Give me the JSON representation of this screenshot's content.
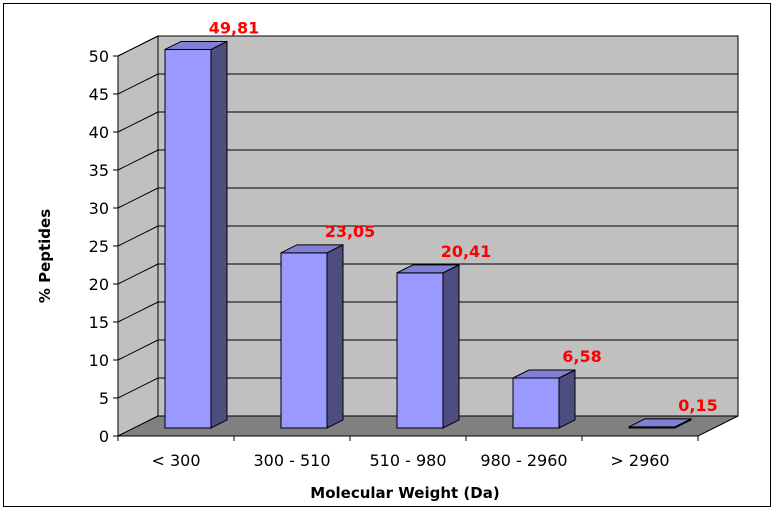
{
  "chart_data": {
    "type": "bar",
    "categories": [
      "< 300",
      "300 - 510",
      "510 - 980",
      "980 - 2960",
      "> 2960"
    ],
    "values": [
      49.81,
      23.05,
      20.41,
      6.58,
      0.15
    ],
    "data_labels": [
      "49,81",
      "23,05",
      "20,41",
      "6,58",
      "0,15"
    ],
    "xlabel": "Molecular Weight (Da)",
    "ylabel": "% Peptides",
    "ylim": [
      0,
      50
    ],
    "yticks": [
      "0",
      "5",
      "10",
      "15",
      "20",
      "25",
      "30",
      "35",
      "40",
      "45",
      "50"
    ],
    "grid": true,
    "legend": "none",
    "style": "3d",
    "colors": {
      "bar_front": "#9999ff",
      "bar_side": "#4d4d80",
      "bar_top": "#8080d4",
      "wall": "#c0c0c0",
      "floor": "#808080",
      "label": "#ff0000"
    }
  }
}
